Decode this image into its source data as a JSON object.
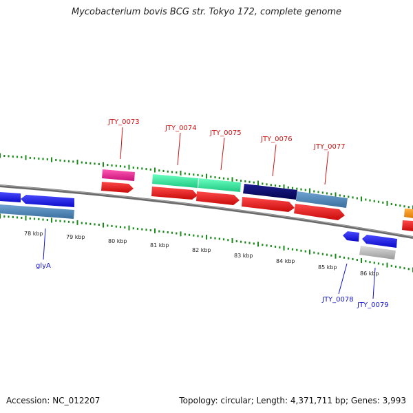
{
  "title": "Mycobacterium bovis BCG str. Tokyo 172, complete genome",
  "footer": {
    "accession": "Accession: NC_012207",
    "summary": "Topology: circular; Length: 4,371,711 bp; Genes: 3,993"
  },
  "kbp_labels": [
    "78 kbp",
    "79 kbp",
    "80 kbp",
    "81 kbp",
    "82 kbp",
    "83 kbp",
    "84 kbp",
    "85 kbp",
    "86 kbp"
  ],
  "gene_labels_top": [
    "JTY_0073",
    "JTY_0074",
    "JTY_0075",
    "JTY_0076",
    "JTY_0077"
  ],
  "gene_labels_bottom": [
    "glyA",
    "JTY_0078",
    "JTY_0079"
  ],
  "colors": {
    "cds": "#e8151a",
    "gene_blue": "#1a1af0",
    "steel": "#4a84b8",
    "magenta": "#e8208c",
    "mint": "#26ee9c",
    "navy": "#0a0a6e",
    "orange": "#f39218",
    "gray": "#b8b8b8",
    "tick": "#1a8a1a",
    "backbone": "#7d7d7d"
  }
}
